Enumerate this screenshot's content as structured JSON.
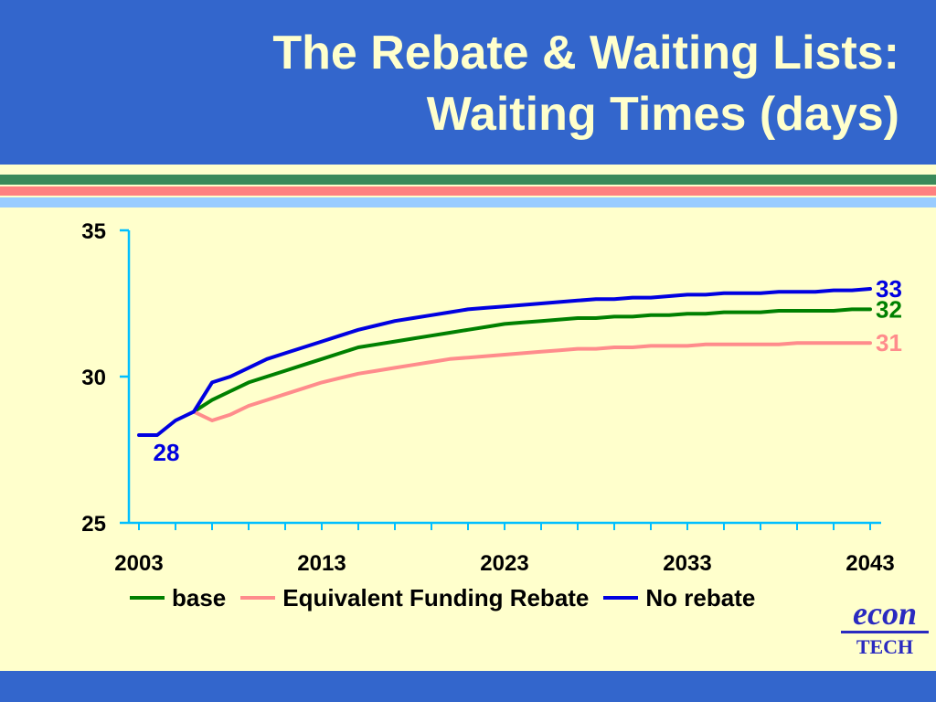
{
  "slide": {
    "title_line1": "The Rebate & Waiting Lists:",
    "title_line2": "Waiting Times (days)"
  },
  "colors": {
    "title_background": "#3366CC",
    "title_text": "#FFFFCC",
    "slide_background": "#FFFFCC",
    "stripe_green": "#3A8A5A",
    "stripe_pink": "#FF8080",
    "stripe_light_blue": "#99CCFF",
    "axis": "#00BFFF"
  },
  "logo": {
    "econ": "econ",
    "tech": "TECH"
  },
  "chart_data": {
    "type": "line",
    "title": "",
    "xlabel": "",
    "ylabel": "",
    "xlim": [
      2003,
      2043
    ],
    "ylim": [
      25,
      35
    ],
    "x_ticks": [
      "2003",
      "2013",
      "2023",
      "2033",
      "2043"
    ],
    "y_ticks": [
      "25",
      "30",
      "35"
    ],
    "grid": false,
    "legend_position": "bottom",
    "x": [
      2003,
      2004,
      2005,
      2006,
      2007,
      2008,
      2009,
      2010,
      2011,
      2012,
      2013,
      2014,
      2015,
      2016,
      2017,
      2018,
      2019,
      2020,
      2021,
      2022,
      2023,
      2024,
      2025,
      2026,
      2027,
      2028,
      2029,
      2030,
      2031,
      2032,
      2033,
      2034,
      2035,
      2036,
      2037,
      2038,
      2039,
      2040,
      2041,
      2042,
      2043
    ],
    "series": [
      {
        "name": "base",
        "color": "#008000",
        "values": [
          null,
          null,
          null,
          28.8,
          29.2,
          29.5,
          29.8,
          30.0,
          30.2,
          30.4,
          30.6,
          30.8,
          31.0,
          31.1,
          31.2,
          31.3,
          31.4,
          31.5,
          31.6,
          31.7,
          31.8,
          31.85,
          31.9,
          31.95,
          32.0,
          32.0,
          32.05,
          32.05,
          32.1,
          32.1,
          32.15,
          32.15,
          32.2,
          32.2,
          32.2,
          32.25,
          32.25,
          32.25,
          32.25,
          32.3,
          32.3
        ],
        "end_label": "32"
      },
      {
        "name": "Equivalent Funding Rebate",
        "color": "#FF8C8C",
        "values": [
          null,
          null,
          null,
          28.8,
          28.5,
          28.7,
          29.0,
          29.2,
          29.4,
          29.6,
          29.8,
          29.95,
          30.1,
          30.2,
          30.3,
          30.4,
          30.5,
          30.6,
          30.65,
          30.7,
          30.75,
          30.8,
          30.85,
          30.9,
          30.95,
          30.95,
          31.0,
          31.0,
          31.05,
          31.05,
          31.05,
          31.1,
          31.1,
          31.1,
          31.1,
          31.1,
          31.15,
          31.15,
          31.15,
          31.15,
          31.15
        ],
        "end_label": "31"
      },
      {
        "name": "No rebate",
        "color": "#0000E0",
        "values": [
          28.0,
          28.0,
          28.5,
          28.8,
          29.8,
          30.0,
          30.3,
          30.6,
          30.8,
          31.0,
          31.2,
          31.4,
          31.6,
          31.75,
          31.9,
          32.0,
          32.1,
          32.2,
          32.3,
          32.35,
          32.4,
          32.45,
          32.5,
          32.55,
          32.6,
          32.65,
          32.65,
          32.7,
          32.7,
          32.75,
          32.8,
          32.8,
          32.85,
          32.85,
          32.85,
          32.9,
          32.9,
          32.9,
          32.95,
          32.95,
          33.0
        ],
        "end_label": "33"
      }
    ],
    "annotations": [
      {
        "text": "28",
        "x": 2004.5,
        "y": 27.4,
        "color": "#0000E0"
      }
    ]
  }
}
